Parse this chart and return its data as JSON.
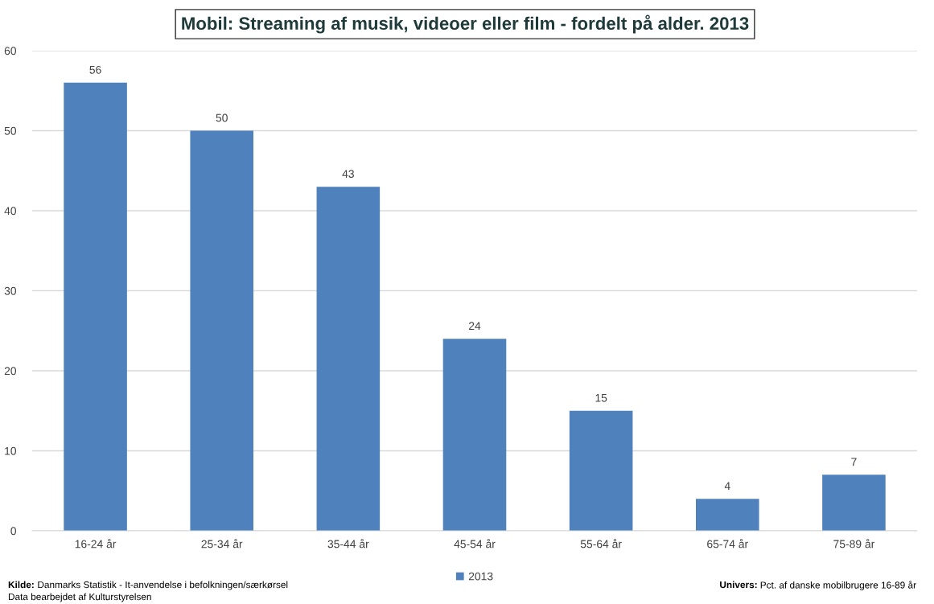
{
  "chart_data": {
    "type": "bar",
    "title": "Mobil: Streaming af musik, videoer eller film - fordelt på alder. 2013",
    "categories": [
      "16-24 år",
      "25-34 år",
      "35-44 år",
      "45-54 år",
      "55-64 år",
      "65-74 år",
      "75-89 år"
    ],
    "series": [
      {
        "name": "2013",
        "color": "#4f81bd",
        "values": [
          56,
          50,
          43,
          24,
          15,
          4,
          7
        ]
      }
    ],
    "ylim": [
      0,
      60
    ],
    "yticks": [
      0,
      10,
      20,
      30,
      40,
      50,
      60
    ],
    "grid": "y",
    "legend": "bottom",
    "data_labels": true,
    "annotations": [
      "Kilde: Danmarks Statistik - It-anvendelse i befolkningen/særkørsel",
      "Data bearbejdet af Kulturstyrelsen",
      "Univers: Pct. af danske mobilbrugere 16-89 år"
    ]
  }
}
